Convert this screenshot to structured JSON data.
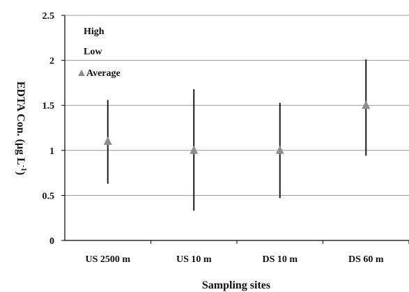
{
  "chart_data": {
    "type": "scatter",
    "title": "",
    "xlabel": "Sampling sites",
    "ylabel": "EDTA Con. (µg L",
    "ylabel_sup": "-1",
    "ylabel_tail": ")",
    "categories": [
      "US 2500 m",
      "US 10 m",
      "DS 10 m",
      "DS 60 m"
    ],
    "y_ticks": [
      "0",
      "0.5",
      "1",
      "1.5",
      "2",
      "2.5"
    ],
    "ylim": [
      0,
      2.5
    ],
    "grid": true,
    "legend_position": "top-left",
    "series": [
      {
        "name": "High",
        "values": [
          1.56,
          1.68,
          1.53,
          2.01
        ]
      },
      {
        "name": "Low",
        "values": [
          0.63,
          0.33,
          0.47,
          0.94
        ]
      },
      {
        "name": "Average",
        "values": [
          1.1,
          1.0,
          1.0,
          1.5
        ]
      }
    ],
    "colors": {
      "range_line": "#1a1a1a",
      "average_marker": "#8c8c8c",
      "grid": "#9a9a9a",
      "axis": "#000000"
    }
  }
}
